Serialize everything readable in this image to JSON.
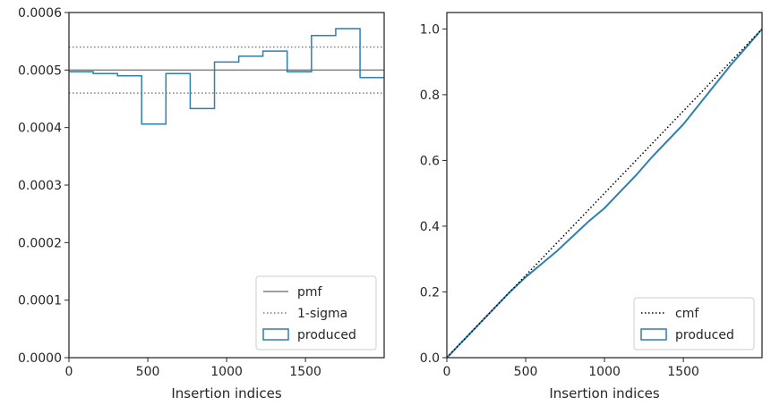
{
  "colors": {
    "produced": "#2f7fb1",
    "pmf": "#808080",
    "cmf": "#000000",
    "axis": "#262626"
  },
  "chart_data": [
    {
      "type": "line",
      "xlabel": "Insertion indices",
      "ylabel": "",
      "xlim": [
        0,
        1999
      ],
      "ylim": [
        0,
        0.0006
      ],
      "xticks": [
        0,
        500,
        1000,
        1500
      ],
      "xtick_labels": [
        "0",
        "500",
        "1000",
        "1500"
      ],
      "yticks": [
        0,
        0.0001,
        0.0002,
        0.0003,
        0.0004,
        0.0005,
        0.0006
      ],
      "ytick_labels": [
        "0.0000",
        "0.0001",
        "0.0002",
        "0.0003",
        "0.0004",
        "0.0005",
        "0.0006"
      ],
      "legend_position": "lower-right",
      "legend": [
        {
          "key": "pmf",
          "label": "pmf",
          "style": "solid-line"
        },
        {
          "key": "sigma",
          "label": "1-sigma",
          "style": "dotted-line"
        },
        {
          "key": "produced",
          "label": "produced",
          "style": "box"
        }
      ],
      "pmf": 0.0005,
      "sigma_band": [
        0.00046,
        0.00054
      ],
      "produced_edges": [
        0,
        154,
        308,
        461,
        615,
        769,
        923,
        1077,
        1230,
        1384,
        1538,
        1692,
        1846,
        1999
      ],
      "produced_values": [
        0.000497,
        0.000494,
        0.00049,
        0.000406,
        0.000494,
        0.000433,
        0.000514,
        0.000524,
        0.000533,
        0.000497,
        0.00056,
        0.000572,
        0.000487
      ]
    },
    {
      "type": "line",
      "xlabel": "Insertion indices",
      "ylabel": "",
      "xlim": [
        0,
        1999
      ],
      "ylim": [
        0,
        1.05
      ],
      "xticks": [
        0,
        500,
        1000,
        1500
      ],
      "xtick_labels": [
        "0",
        "500",
        "1000",
        "1500"
      ],
      "yticks": [
        0,
        0.2,
        0.4,
        0.6,
        0.8,
        1.0
      ],
      "ytick_labels": [
        "0.0",
        "0.2",
        "0.4",
        "0.6",
        "0.8",
        "1.0"
      ],
      "legend_position": "lower-right",
      "legend": [
        {
          "key": "cmf",
          "label": "cmf",
          "style": "dotted-line"
        },
        {
          "key": "produced",
          "label": "produced",
          "style": "box"
        }
      ],
      "cmf": {
        "x": [
          0,
          1999
        ],
        "y": [
          0,
          1.0
        ]
      },
      "produced": {
        "x": [
          0,
          100,
          200,
          300,
          400,
          500,
          600,
          700,
          800,
          900,
          1000,
          1100,
          1200,
          1300,
          1400,
          1500,
          1600,
          1700,
          1800,
          1900,
          1999
        ],
        "y": [
          0,
          0.05,
          0.1,
          0.15,
          0.2,
          0.245,
          0.285,
          0.325,
          0.37,
          0.415,
          0.455,
          0.505,
          0.555,
          0.61,
          0.66,
          0.71,
          0.77,
          0.83,
          0.89,
          0.945,
          1.0
        ]
      }
    }
  ]
}
